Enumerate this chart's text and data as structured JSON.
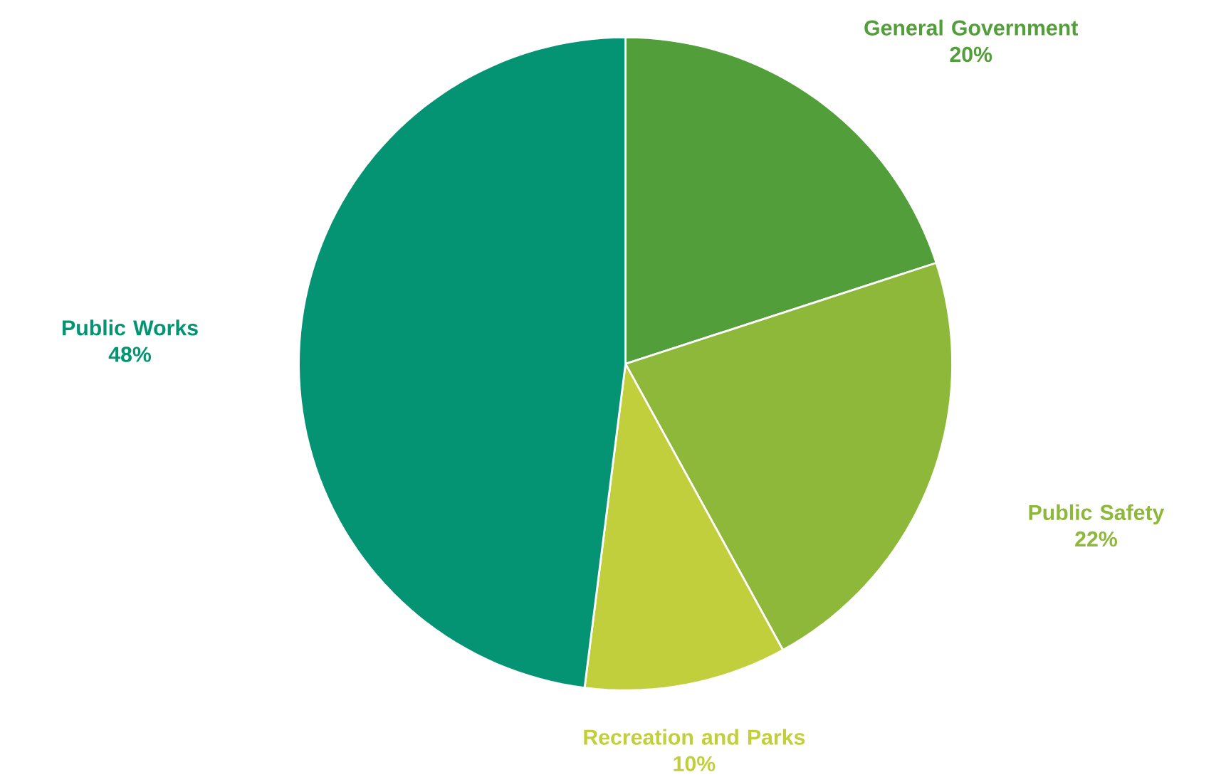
{
  "chart_data": {
    "type": "pie",
    "categories": [
      "General Government",
      "Public Safety",
      "Recreation and Parks",
      "Public Works"
    ],
    "values": [
      20,
      22,
      10,
      48
    ],
    "colors": [
      "#529e3a",
      "#8db83a",
      "#c2cf3c",
      "#049474"
    ],
    "value_labels": [
      "20%",
      "22%",
      "10%",
      "48%"
    ]
  }
}
